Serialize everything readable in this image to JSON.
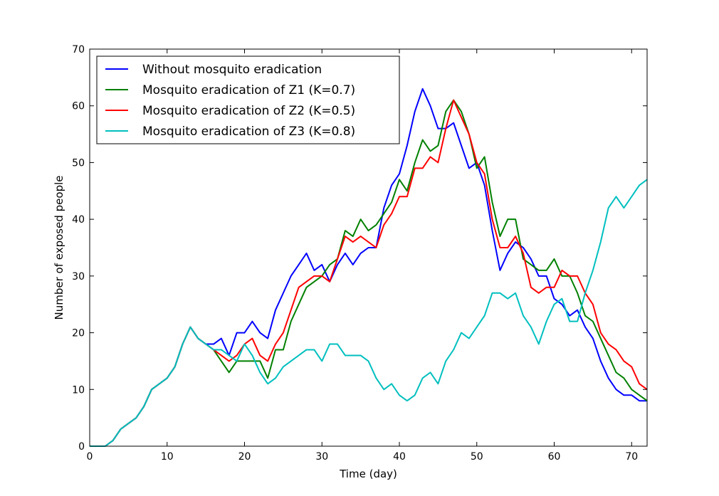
{
  "chart_data": {
    "type": "line",
    "title": "",
    "xlabel": "Time (day)",
    "ylabel": "Number of  exposed people",
    "xlim": [
      0,
      72
    ],
    "ylim": [
      0,
      70
    ],
    "xticks": [
      0,
      10,
      20,
      30,
      40,
      50,
      60,
      70
    ],
    "yticks": [
      0,
      10,
      20,
      30,
      40,
      50,
      60,
      70
    ],
    "grid": false,
    "legend_position": "top-left",
    "x": [
      0,
      1,
      2,
      3,
      4,
      5,
      6,
      7,
      8,
      9,
      10,
      11,
      12,
      13,
      14,
      15,
      16,
      17,
      18,
      19,
      20,
      21,
      22,
      23,
      24,
      25,
      26,
      27,
      28,
      29,
      30,
      31,
      32,
      33,
      34,
      35,
      36,
      37,
      38,
      39,
      40,
      41,
      42,
      43,
      44,
      45,
      46,
      47,
      48,
      49,
      50,
      51,
      52,
      53,
      54,
      55,
      56,
      57,
      58,
      59,
      60,
      61,
      62,
      63,
      64,
      65,
      66,
      67,
      68,
      69,
      70,
      71,
      72
    ],
    "series": [
      {
        "name": "Without mosquito eradication",
        "color": "#0000ff",
        "values": [
          0,
          0,
          0,
          1,
          3,
          4,
          5,
          7,
          10,
          11,
          12,
          14,
          18,
          21,
          19,
          18,
          18,
          19,
          16,
          20,
          20,
          22,
          20,
          19,
          24,
          27,
          30,
          32,
          34,
          31,
          32,
          29,
          32,
          34,
          32,
          34,
          35,
          35,
          42,
          46,
          48,
          53,
          59,
          63,
          60,
          56,
          56,
          57,
          53,
          49,
          50,
          46,
          38,
          31,
          34,
          36,
          35,
          33,
          30,
          30,
          26,
          25,
          23,
          24,
          21,
          19,
          15,
          12,
          10,
          9,
          9,
          8,
          8
        ]
      },
      {
        "name": "Mosquito eradication of Z1 (K=0.7)",
        "color": "#008000",
        "values": [
          0,
          0,
          0,
          1,
          3,
          4,
          5,
          7,
          10,
          11,
          12,
          14,
          18,
          21,
          19,
          18,
          17,
          15,
          13,
          15,
          15,
          15,
          15,
          12,
          17,
          17,
          22,
          25,
          28,
          29,
          30,
          32,
          33,
          38,
          37,
          40,
          38,
          39,
          41,
          43,
          47,
          45,
          50,
          54,
          52,
          53,
          59,
          61,
          59,
          55,
          49,
          51,
          43,
          37,
          40,
          40,
          33,
          32,
          31,
          31,
          33,
          30,
          30,
          27,
          23,
          22,
          19,
          16,
          13,
          12,
          10,
          9,
          8
        ]
      },
      {
        "name": "Mosquito eradication of Z2 (K=0.5)",
        "color": "#ff0000",
        "values": [
          0,
          0,
          0,
          1,
          3,
          4,
          5,
          7,
          10,
          11,
          12,
          14,
          18,
          21,
          19,
          18,
          17,
          16,
          15,
          16,
          18,
          19,
          16,
          15,
          18,
          20,
          24,
          28,
          29,
          30,
          30,
          29,
          33,
          37,
          36,
          37,
          36,
          35,
          39,
          41,
          44,
          44,
          49,
          49,
          51,
          50,
          56,
          61,
          58,
          55,
          50,
          48,
          40,
          35,
          35,
          37,
          34,
          28,
          27,
          28,
          28,
          31,
          30,
          30,
          27,
          25,
          20,
          18,
          17,
          15,
          14,
          11,
          10
        ]
      },
      {
        "name": "Mosquito eradication of Z3 (K=0.8)",
        "color": "#00bfbf",
        "values": [
          0,
          0,
          0,
          1,
          3,
          4,
          5,
          7,
          10,
          11,
          12,
          14,
          18,
          21,
          19,
          18,
          17,
          17,
          16,
          15,
          18,
          16,
          13,
          11,
          12,
          14,
          15,
          16,
          17,
          17,
          15,
          18,
          18,
          16,
          16,
          16,
          15,
          12,
          10,
          11,
          9,
          8,
          9,
          12,
          13,
          11,
          15,
          17,
          20,
          19,
          21,
          23,
          27,
          27,
          26,
          27,
          23,
          21,
          18,
          22,
          25,
          26,
          22,
          22,
          27,
          31,
          36,
          42,
          44,
          42,
          44,
          46,
          47
        ]
      }
    ]
  }
}
